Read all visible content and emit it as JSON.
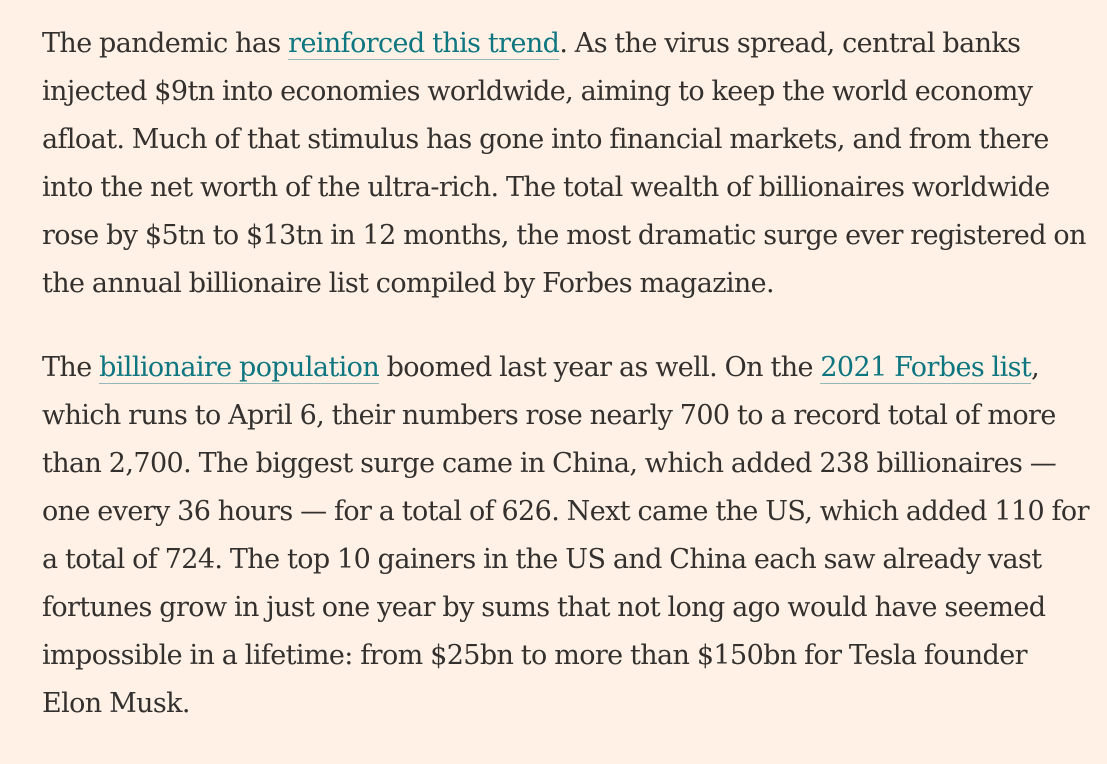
{
  "article": {
    "paragraph1": {
      "before_link": "The pandemic has ",
      "link": "reinforced this trend",
      "after_link": ". As the virus spread, central banks injected $9tn into economies worldwide, aiming to keep the world economy afloat. Much of that stimulus has gone into financial markets, and from there into the net worth of the ultra-rich. The total wealth of billionaires worldwide rose by $5tn to $13tn in 12 months, the most dramatic surge ever registered on the annual billionaire list compiled by Forbes magazine."
    },
    "paragraph2": {
      "text_1": "The ",
      "link_1": "billionaire population",
      "text_2": " boomed last year as well. On the ",
      "link_2": "2021 Forbes list",
      "text_3": ", which runs to April 6, their numbers rose nearly 700 to a record total of more than 2,700. The biggest surge came in China, which added 238 billionaires — one every 36 hours — for a total of 626. Next came the US, which added 110 for a total of 724. The top 10 gainers in the US and China each saw already vast fortunes grow in just one year by sums that not long ago would have seemed impossible in a lifetime: from $25bn to more than $150bn for Tesla founder Elon Musk."
    },
    "colors": {
      "background": "#fff1e5",
      "text": "#33302e",
      "link": "#0d7680"
    }
  }
}
